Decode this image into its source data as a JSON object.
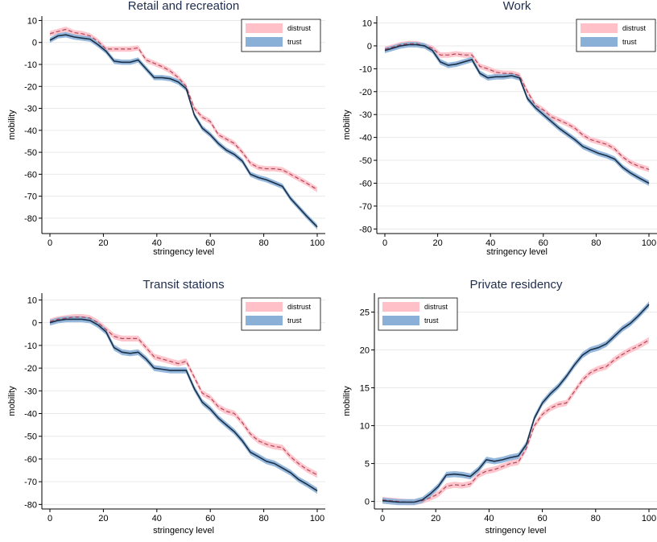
{
  "colors": {
    "distrust_band": "#ffc0c8",
    "distrust_line": "#b0485a",
    "trust_band": "#8ab0d8",
    "trust_line": "#1a2f48",
    "title": "#1f2d4d",
    "grid": "#eaeaea"
  },
  "chart_data": [
    {
      "type": "line",
      "title": "Retail and recreation",
      "xlabel": "stringency level",
      "ylabel": "mobility",
      "xlim": [
        0,
        100
      ],
      "ylim": [
        -87,
        12
      ],
      "xticks": [
        0,
        20,
        40,
        60,
        80,
        100
      ],
      "yticks": [
        10,
        0,
        -10,
        -20,
        -30,
        -40,
        -50,
        -60,
        -70,
        -80
      ],
      "grid": true,
      "legend_position": "top-right",
      "x": [
        0,
        3,
        6,
        9,
        12,
        15,
        18,
        21,
        24,
        27,
        30,
        33,
        36,
        39,
        42,
        45,
        48,
        51,
        54,
        57,
        60,
        63,
        66,
        69,
        72,
        75,
        78,
        81,
        84,
        87,
        90,
        93,
        96,
        100
      ],
      "series": [
        {
          "name": "distrust",
          "values": [
            4,
            5,
            6,
            4.5,
            4,
            3,
            0.5,
            -3,
            -3,
            -3,
            -3,
            -2.5,
            -8,
            -9.5,
            -11,
            -13,
            -16,
            -20,
            -30,
            -34,
            -36,
            -42,
            -44,
            -46,
            -50,
            -55,
            -57,
            -57.5,
            -57.5,
            -58,
            -60,
            -62,
            -64,
            -67
          ],
          "band": 1.2
        },
        {
          "name": "trust",
          "values": [
            1,
            3,
            3.5,
            2.5,
            2,
            1.5,
            -1,
            -4,
            -8.5,
            -9,
            -9,
            -8,
            -12,
            -16,
            -16,
            -16.5,
            -18,
            -21,
            -33,
            -39,
            -42,
            -46,
            -49,
            -51,
            -54,
            -60,
            -61.5,
            -62.5,
            -64,
            -65.5,
            -71,
            -75,
            -79,
            -84
          ],
          "band": 1.2
        }
      ]
    },
    {
      "type": "line",
      "title": "Work",
      "xlabel": "stringency level",
      "ylabel": "mobility",
      "xlim": [
        0,
        100
      ],
      "ylim": [
        -82,
        13
      ],
      "xticks": [
        0,
        20,
        40,
        60,
        80,
        100
      ],
      "yticks": [
        10,
        0,
        -10,
        -20,
        -30,
        -40,
        -50,
        -60,
        -70,
        -80
      ],
      "grid": true,
      "legend_position": "top-right",
      "x": [
        0,
        3,
        6,
        9,
        12,
        15,
        18,
        21,
        24,
        27,
        30,
        33,
        36,
        39,
        42,
        45,
        48,
        51,
        54,
        57,
        60,
        63,
        66,
        69,
        72,
        75,
        78,
        81,
        84,
        87,
        90,
        93,
        96,
        100
      ],
      "series": [
        {
          "name": "distrust",
          "values": [
            -1.5,
            -0.5,
            0.5,
            1,
            1,
            0,
            -1,
            -4,
            -4,
            -3.5,
            -4,
            -4,
            -9,
            -10,
            -11.5,
            -12,
            -12,
            -13,
            -20,
            -26,
            -28,
            -31,
            -32.5,
            -34,
            -36,
            -39,
            -41,
            -42,
            -43,
            -45,
            -48.5,
            -51,
            -52.5,
            -54
          ],
          "band": 1.2
        },
        {
          "name": "trust",
          "values": [
            -2,
            -1,
            0,
            0.5,
            0.5,
            0,
            -2,
            -7,
            -8.5,
            -8,
            -7,
            -6,
            -12,
            -14,
            -13.5,
            -13.5,
            -13,
            -14,
            -23,
            -27,
            -30,
            -33,
            -36,
            -38.5,
            -41,
            -44,
            -45.5,
            -47,
            -48,
            -49.5,
            -53,
            -55.5,
            -57.5,
            -60
          ],
          "band": 1.2
        }
      ]
    },
    {
      "type": "line",
      "title": "Transit stations",
      "xlabel": "stringency level",
      "ylabel": "mobility",
      "xlim": [
        0,
        100
      ],
      "ylim": [
        -82,
        13
      ],
      "xticks": [
        0,
        20,
        40,
        60,
        80,
        100
      ],
      "yticks": [
        10,
        0,
        -10,
        -20,
        -30,
        -40,
        -50,
        -60,
        -70,
        -80
      ],
      "grid": true,
      "legend_position": "top-right",
      "x": [
        0,
        3,
        6,
        9,
        12,
        15,
        18,
        21,
        24,
        27,
        30,
        33,
        36,
        39,
        42,
        45,
        48,
        51,
        54,
        57,
        60,
        63,
        66,
        69,
        72,
        75,
        78,
        81,
        84,
        87,
        90,
        93,
        96,
        100
      ],
      "series": [
        {
          "name": "distrust",
          "values": [
            0.5,
            1.5,
            2,
            2.5,
            2.5,
            2,
            0,
            -3,
            -6,
            -7,
            -7,
            -7,
            -11,
            -15,
            -16,
            -17,
            -18,
            -17,
            -24,
            -31,
            -33,
            -37,
            -39,
            -40,
            -44,
            -49,
            -52,
            -53.5,
            -54.5,
            -55,
            -59,
            -62,
            -64.5,
            -67
          ],
          "band": 1.3
        },
        {
          "name": "trust",
          "values": [
            0,
            1,
            1.5,
            1.5,
            1.5,
            1,
            -1,
            -4,
            -11,
            -13,
            -13.5,
            -13,
            -16,
            -20,
            -20.5,
            -21,
            -21,
            -21,
            -29,
            -35,
            -38,
            -42,
            -45,
            -48,
            -52,
            -57,
            -59,
            -61,
            -62,
            -64,
            -66,
            -69,
            -71,
            -74
          ],
          "band": 1.3
        }
      ]
    },
    {
      "type": "line",
      "title": "Private residency",
      "xlabel": "stringency level",
      "ylabel": "mobility",
      "xlim": [
        0,
        100
      ],
      "ylim": [
        -1,
        27.5
      ],
      "xticks": [
        0,
        20,
        40,
        60,
        80,
        100
      ],
      "yticks": [
        25,
        20,
        15,
        10,
        5,
        0
      ],
      "grid": true,
      "legend_position": "top-left",
      "x": [
        0,
        3,
        6,
        9,
        12,
        15,
        18,
        21,
        24,
        27,
        30,
        33,
        36,
        39,
        42,
        45,
        48,
        51,
        54,
        57,
        60,
        63,
        66,
        69,
        72,
        75,
        78,
        81,
        84,
        87,
        90,
        93,
        96,
        100
      ],
      "series": [
        {
          "name": "distrust",
          "values": [
            0.2,
            0.1,
            0,
            -0.1,
            -0.1,
            0.1,
            0.5,
            1,
            2,
            2.2,
            2.1,
            2.3,
            3.5,
            4,
            4.2,
            4.6,
            5,
            5.2,
            7,
            10,
            11.5,
            12.3,
            12.8,
            13,
            14.5,
            16,
            17,
            17.5,
            17.8,
            18.7,
            19.4,
            20,
            20.5,
            21.3
          ],
          "band": 0.4
        },
        {
          "name": "trust",
          "values": [
            0.1,
            0,
            -0.1,
            -0.1,
            -0.1,
            0.2,
            1,
            2,
            3.5,
            3.6,
            3.5,
            3.3,
            4.2,
            5.5,
            5.3,
            5.5,
            5.8,
            6,
            7.5,
            11,
            13,
            14.2,
            15.2,
            16.5,
            18,
            19.3,
            20,
            20.3,
            20.8,
            21.8,
            22.8,
            23.5,
            24.5,
            26
          ],
          "band": 0.4
        }
      ]
    }
  ]
}
